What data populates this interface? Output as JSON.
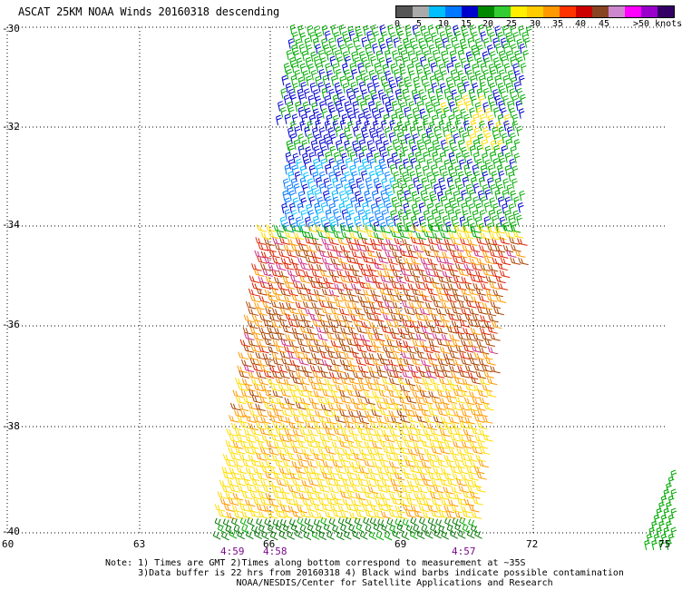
{
  "title": "ASCAT 25KM NOAA Winds 20160318 descending",
  "legend": {
    "colors": [
      "#555555",
      "#aaaaaa",
      "#00bfff",
      "#0077ff",
      "#0000cc",
      "#008800",
      "#33cc33",
      "#ffee00",
      "#ffcc00",
      "#ff9900",
      "#ff3300",
      "#cc0000",
      "#884422",
      "#cc88cc",
      "#ff00ff",
      "#9900cc",
      "#330066"
    ],
    "tick_labels": [
      "0",
      "5",
      "10",
      "15",
      "20",
      "25",
      "30",
      "35",
      "40",
      "45",
      ">50 knots"
    ]
  },
  "latitude_labels": [
    "-30",
    "-32",
    "-34",
    "-36",
    "-38",
    "-40"
  ],
  "longitude_labels": [
    "60",
    "63",
    "66",
    "69",
    "72",
    "75"
  ],
  "time_labels": [
    "4:59",
    "4:58",
    "4:57"
  ],
  "notes": [
    "Note: 1) Times are GMT 2)Times along bottom correspond to measurement at ~35S",
    "      3)Data buffer is 22 hrs from 20160318 4) Black wind barbs indicate possible contamination",
    "                        NOAA/NESDIS/Center for Satellite Applications and Research"
  ],
  "wind_colors": {
    "lt15": "#0000cc",
    "mid15": "#0077ff",
    "light": "#00bfff",
    "green": "#00aa00",
    "darkgreen": "#007700",
    "yellow": "#ffdd00",
    "orange": "#ff9900",
    "red": "#dd2200",
    "brown": "#aa4400",
    "magenta": "#cc3388"
  }
}
